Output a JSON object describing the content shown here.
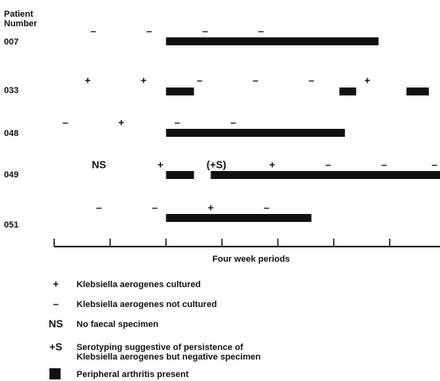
{
  "chart_data": {
    "type": "timeline",
    "ylabel": [
      "Patient",
      "Number"
    ],
    "xlabel": "Four week periods",
    "xlim": [
      0,
      6.9
    ],
    "xticks": [
      0,
      1,
      2,
      3,
      4,
      5,
      6
    ],
    "bar_color": "#111111",
    "rows": [
      {
        "patient": "007",
        "bars": [
          [
            2.0,
            5.8
          ]
        ],
        "marks": [
          {
            "x": 0.7,
            "symbol": "–"
          },
          {
            "x": 1.7,
            "symbol": "–"
          },
          {
            "x": 2.7,
            "symbol": "–"
          },
          {
            "x": 3.7,
            "symbol": "–"
          }
        ]
      },
      {
        "patient": "033",
        "bars": [
          [
            2.0,
            2.5
          ],
          [
            5.1,
            5.4
          ],
          [
            6.3,
            6.7
          ]
        ],
        "marks": [
          {
            "x": 0.6,
            "symbol": "+"
          },
          {
            "x": 1.6,
            "symbol": "+"
          },
          {
            "x": 2.6,
            "symbol": "–"
          },
          {
            "x": 3.6,
            "symbol": "–"
          },
          {
            "x": 4.6,
            "symbol": "–"
          },
          {
            "x": 5.6,
            "symbol": "+"
          }
        ]
      },
      {
        "patient": "048",
        "bars": [
          [
            2.0,
            5.2
          ]
        ],
        "marks": [
          {
            "x": 0.2,
            "symbol": "–"
          },
          {
            "x": 1.2,
            "symbol": "+"
          },
          {
            "x": 2.2,
            "symbol": "–"
          },
          {
            "x": 3.2,
            "symbol": "–"
          }
        ]
      },
      {
        "patient": "049",
        "bars": [
          [
            2.0,
            2.5
          ],
          [
            2.8,
            6.9
          ]
        ],
        "marks": [
          {
            "x": 0.8,
            "symbol": "NS"
          },
          {
            "x": 1.9,
            "symbol": "+"
          },
          {
            "x": 2.9,
            "symbol": "(+S)"
          },
          {
            "x": 3.9,
            "symbol": "+"
          },
          {
            "x": 4.9,
            "symbol": "–"
          },
          {
            "x": 5.9,
            "symbol": "–"
          },
          {
            "x": 6.8,
            "symbol": "–"
          }
        ]
      },
      {
        "patient": "051",
        "bars": [
          [
            2.0,
            4.6
          ]
        ],
        "marks": [
          {
            "x": 0.8,
            "symbol": "–"
          },
          {
            "x": 1.8,
            "symbol": "–"
          },
          {
            "x": 2.8,
            "symbol": "+"
          },
          {
            "x": 3.8,
            "symbol": "–"
          }
        ]
      }
    ],
    "legend": [
      {
        "symbol": "+",
        "label": [
          "Klebsiella aerogenes cultured"
        ]
      },
      {
        "symbol": "–",
        "label": [
          "Klebsiella aerogenes not cultured"
        ]
      },
      {
        "symbol": "NS",
        "label": [
          "No faecal specimen"
        ]
      },
      {
        "symbol": "+S",
        "label": [
          "Serotyping suggestive of persistence of",
          "Klebsiella aerogenes but negative specimen"
        ]
      },
      {
        "label": [
          "Peripheral arthritis present"
        ]
      }
    ]
  }
}
